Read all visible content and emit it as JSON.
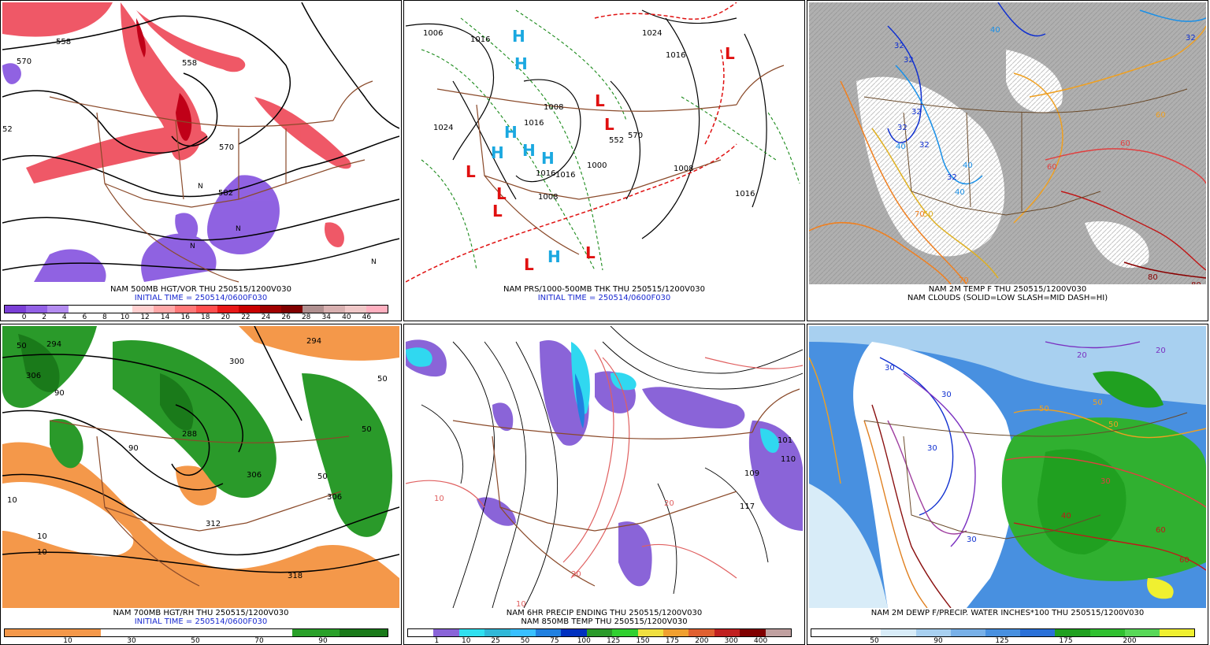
{
  "panels": [
    {
      "id": "p1",
      "line1": "NAM 500MB HGT/VOR THU 250515/1200V030",
      "line2": "INITIAL TIME = 250514/0600F030",
      "legend_colors": [
        "#7b3fd6",
        "#9361e6",
        "#b48cf0",
        "#ffffff",
        "#ffffff",
        "#ffffff",
        "#ffd0d0",
        "#ffa8a8",
        "#ff7878",
        "#ff4e4e",
        "#e81818",
        "#c80000",
        "#a00000",
        "#800000",
        "#b09090",
        "#d8b0b0",
        "#f0c8c8",
        "#ffb0c0"
      ],
      "legend_ticks": [
        "0",
        "2",
        "4",
        "6",
        "8",
        "10",
        "12",
        "14",
        "16",
        "18",
        "20",
        "22",
        "24",
        "26",
        "28",
        "34",
        "40",
        "46"
      ],
      "contour_labels": [
        "558",
        "570",
        "558",
        "570",
        "582",
        "52"
      ],
      "symbol": "N"
    },
    {
      "id": "p2",
      "line1": "NAM PRS/1000-500MB THK THU 250515/1200V030",
      "line2": "INITIAL TIME = 250514/0600F030",
      "contour_labels": [
        "1006",
        "1016",
        "1024",
        "1016",
        "1008",
        "1016",
        "1024",
        "1016",
        "1000",
        "1008",
        "1016",
        "1008",
        "1016",
        "552",
        "570"
      ],
      "high_letter": "H",
      "low_letter": "L"
    },
    {
      "id": "p3",
      "line1": "NAM 2M TEMP F THU 250515/1200V030",
      "line2": "NAM CLOUDS (SOLID=LOW SLASH=MID DASH=HI)",
      "contour_labels": [
        "32",
        "32",
        "32",
        "32",
        "32",
        "32",
        "40",
        "40",
        "40",
        "50",
        "70",
        "70",
        "60",
        "60",
        "80",
        "80",
        "60",
        "40",
        "32"
      ]
    },
    {
      "id": "p4",
      "line1": "NAM 700MB HGT/RH THU 250515/1200V030",
      "line2": "INITIAL TIME = 250514/0600F030",
      "legend_colors": [
        "#f4984a",
        "#f4984a",
        "#ffffff",
        "#ffffff",
        "#ffffff",
        "#ffffff",
        "#2aa02a",
        "#1a7a1a"
      ],
      "legend_ticks": [
        "10",
        "30",
        "50",
        "70",
        "90"
      ],
      "contour_labels": [
        "294",
        "306",
        "300",
        "294",
        "288",
        "306",
        "312",
        "306",
        "318",
        "10",
        "10",
        "10",
        "50",
        "50",
        "50",
        "90",
        "90",
        "50"
      ]
    },
    {
      "id": "p5",
      "line1": "NAM 6HR PRECIP ENDING THU 250515/1200V030",
      "line2": "NAM 850MB TEMP THU 250515/1200V030",
      "legend_colors": [
        "#ffffff",
        "#8a64d8",
        "#30e0f0",
        "#30b8d8",
        "#38c0ff",
        "#2080e0",
        "#0030c0",
        "#2a9a2a",
        "#30d030",
        "#f0e040",
        "#f0a030",
        "#e06030",
        "#c02020",
        "#800000",
        "#c0a0a0"
      ],
      "legend_ticks": [
        "1",
        "10",
        "25",
        "50",
        "75",
        "100",
        "125",
        "150",
        "175",
        "200",
        "300",
        "400"
      ],
      "contour_labels": [
        "10",
        "10",
        "20",
        "20",
        "101",
        "110",
        "109",
        "117"
      ]
    },
    {
      "id": "p6",
      "line1": "NAM 2M DEWP F/PRECIP. WATER INCHES*100 THU 250515/1200V030",
      "line2": "",
      "legend_colors": [
        "#ffffff",
        "#ffffff",
        "#d8ecf8",
        "#a8d0f0",
        "#78b0e8",
        "#4890e0",
        "#2a70d8",
        "#20a020",
        "#30c030",
        "#58d858",
        "#f0f030"
      ],
      "legend_ticks": [
        "50",
        "90",
        "125",
        "175",
        "200"
      ],
      "contour_labels": [
        "30",
        "30",
        "30",
        "30",
        "20",
        "20",
        "30",
        "40",
        "50",
        "50",
        "50",
        "60",
        "60"
      ]
    }
  ]
}
